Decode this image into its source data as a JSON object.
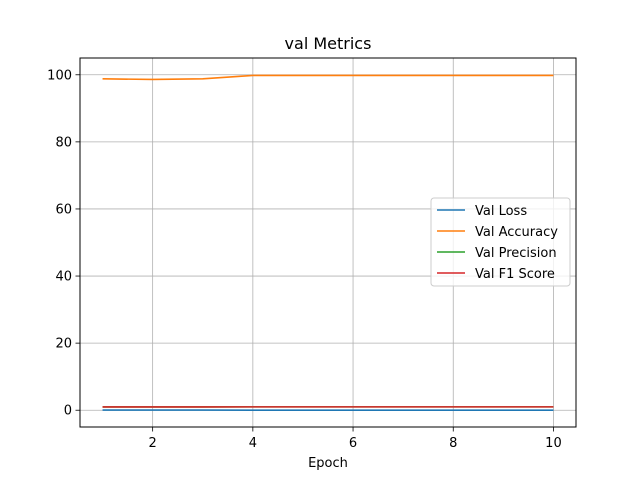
{
  "chart_data": {
    "type": "line",
    "title": "val Metrics",
    "xlabel": "Epoch",
    "ylabel": "",
    "xlim": [
      0.55,
      10.45
    ],
    "ylim": [
      -5,
      105
    ],
    "xticks": [
      2,
      4,
      6,
      8,
      10
    ],
    "yticks": [
      0,
      20,
      40,
      60,
      80,
      100
    ],
    "grid": true,
    "legend_position": "center-right",
    "x": [
      1,
      2,
      3,
      4,
      5,
      6,
      7,
      8,
      9,
      10
    ],
    "series": [
      {
        "name": "Val Loss",
        "color": "#1f77b4",
        "values": [
          0.05,
          0.05,
          0.04,
          0.01,
          0.01,
          0.01,
          0.01,
          0.01,
          0.01,
          0.01
        ]
      },
      {
        "name": "Val Accuracy",
        "color": "#ff7f0e",
        "values": [
          98.8,
          98.6,
          98.8,
          99.8,
          99.8,
          99.8,
          99.8,
          99.8,
          99.8,
          99.8
        ]
      },
      {
        "name": "Val Precision",
        "color": "#2ca02c",
        "values": [
          0.99,
          0.99,
          0.99,
          1.0,
          1.0,
          1.0,
          1.0,
          1.0,
          1.0,
          1.0
        ]
      },
      {
        "name": "Val F1 Score",
        "color": "#d62728",
        "values": [
          0.99,
          0.99,
          0.99,
          1.0,
          1.0,
          1.0,
          1.0,
          1.0,
          1.0,
          1.0
        ]
      }
    ]
  }
}
